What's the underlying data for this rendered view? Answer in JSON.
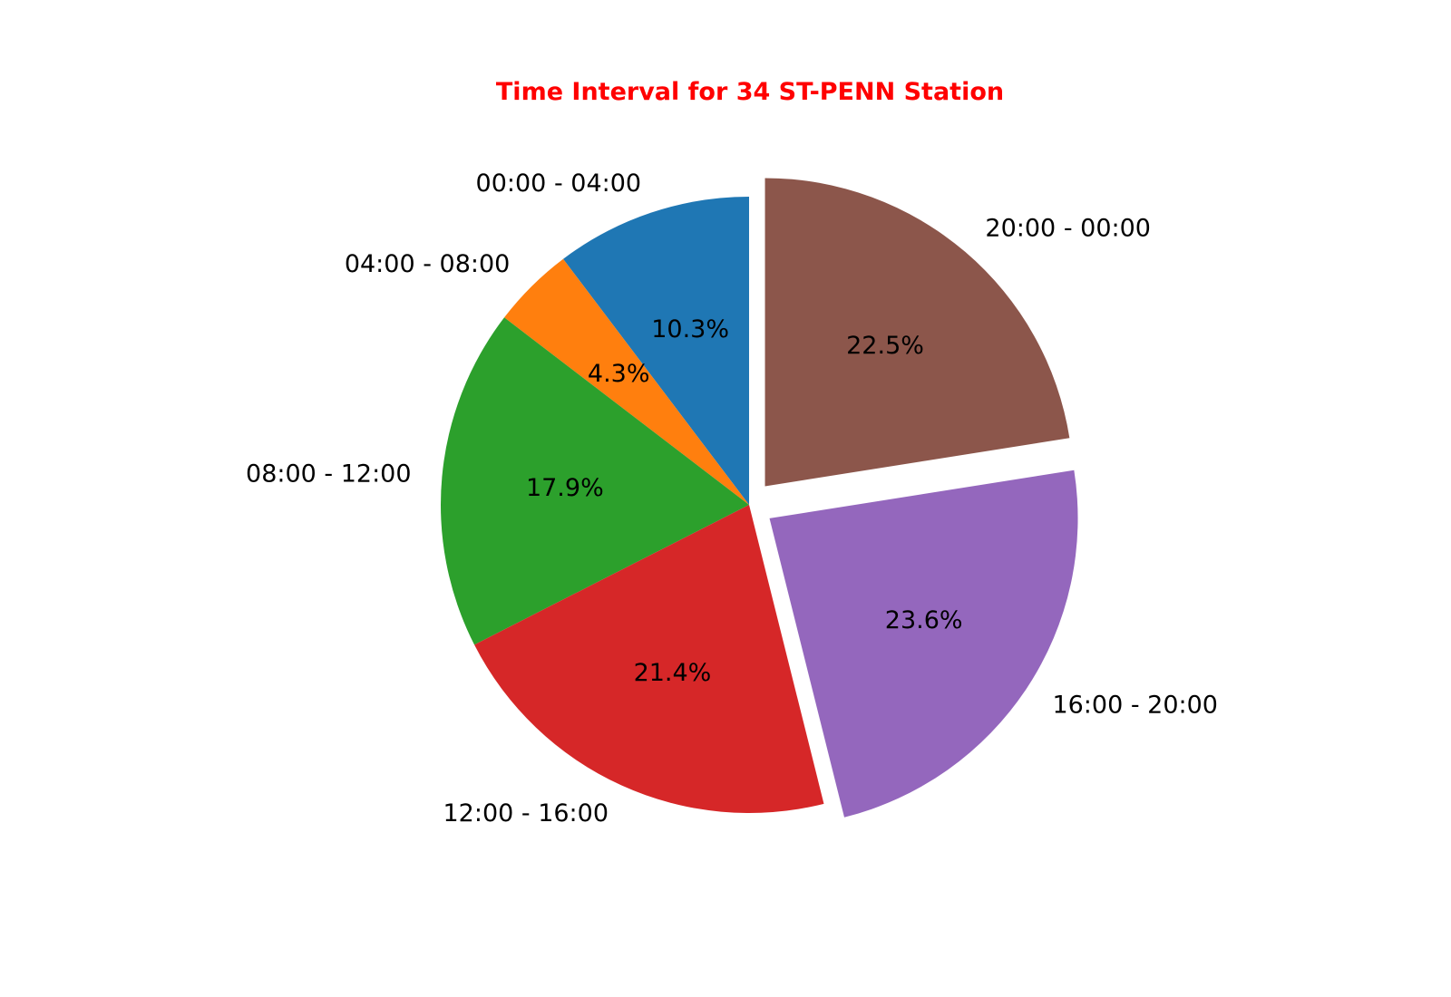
{
  "chart_data": {
    "type": "pie",
    "title": "Time Interval for 34 ST-PENN Station",
    "title_color": "#ff0000",
    "categories": [
      "00:00 - 04:00",
      "04:00 - 08:00",
      "08:00 - 12:00",
      "12:00 - 16:00",
      "16:00 - 20:00",
      "20:00 - 00:00"
    ],
    "values": [
      10.3,
      4.3,
      17.9,
      21.4,
      23.6,
      22.5
    ],
    "value_labels": [
      "10.3%",
      "4.3%",
      "17.9%",
      "21.4%",
      "23.6%",
      "22.5%"
    ],
    "colors": [
      "#1f77b4",
      "#ff7f0e",
      "#2ca02c",
      "#d62728",
      "#9467bd",
      "#8c564b"
    ],
    "exploded": [
      false,
      false,
      false,
      false,
      true,
      true
    ],
    "start_angle_deg": 90,
    "direction": "counterclockwise"
  }
}
